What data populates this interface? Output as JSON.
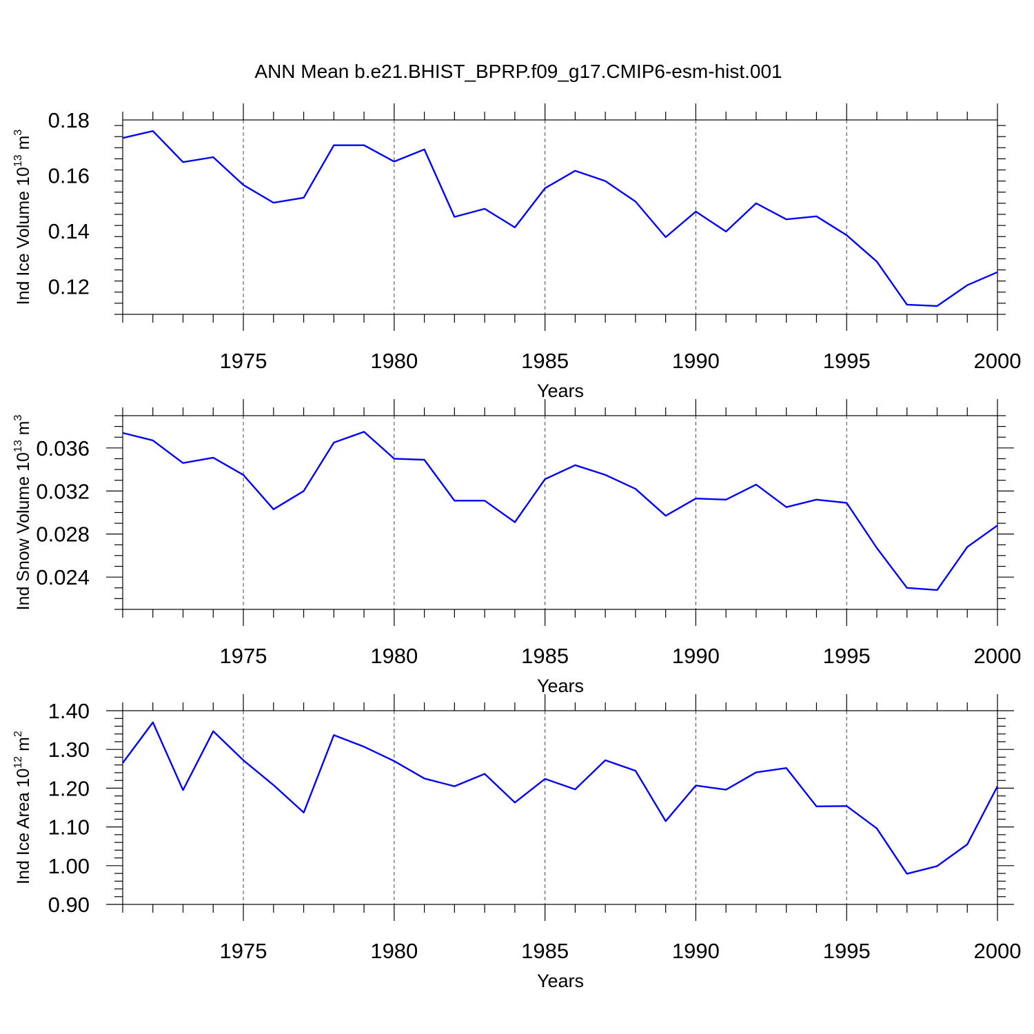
{
  "figure_title": "ANN Mean b.e21.BHIST_BPRP.f09_g17.CMIP6-esm-hist.001",
  "line_color": "#0000ff",
  "chart_data": [
    {
      "type": "line",
      "title": "",
      "xlabel": "Years",
      "ylabel": "Ind Ice Volume 10",
      "ylabel_exp": "13",
      "ylabel_unit": "m",
      "ylabel_unit_exp": "3",
      "xlim": [
        1971,
        2000
      ],
      "ylim": [
        0.11,
        0.18
      ],
      "xticks": [
        1975,
        1980,
        1985,
        1990,
        1995,
        2000
      ],
      "xtick_labels": [
        "1975",
        "1980",
        "1985",
        "1990",
        "1995",
        "2000"
      ],
      "yticks": [
        0.12,
        0.14,
        0.16,
        0.18
      ],
      "ytick_labels": [
        "0.12",
        "0.14",
        "0.16",
        "0.18"
      ],
      "y_minor_step": 0.004,
      "grid": "vertical dashed at major x ticks",
      "x": [
        1971,
        1972,
        1973,
        1974,
        1975,
        1976,
        1977,
        1978,
        1979,
        1980,
        1981,
        1982,
        1983,
        1984,
        1985,
        1986,
        1987,
        1988,
        1989,
        1990,
        1991,
        1992,
        1993,
        1994,
        1995,
        1996,
        1997,
        1998,
        1999,
        2000
      ],
      "values": [
        0.1735,
        0.176,
        0.1648,
        0.1666,
        0.1566,
        0.1502,
        0.152,
        0.1709,
        0.1709,
        0.165,
        0.1694,
        0.1451,
        0.148,
        0.1413,
        0.1554,
        0.1617,
        0.158,
        0.1506,
        0.1378,
        0.147,
        0.1398,
        0.15,
        0.1442,
        0.1453,
        0.1385,
        0.129,
        0.1135,
        0.113,
        0.1205,
        0.1252
      ]
    },
    {
      "type": "line",
      "title": "",
      "xlabel": "Years",
      "ylabel": "Ind Snow Volume 10",
      "ylabel_exp": "13",
      "ylabel_unit": "m",
      "ylabel_unit_exp": "3",
      "xlim": [
        1971,
        2000
      ],
      "ylim": [
        0.021,
        0.039
      ],
      "xticks": [
        1975,
        1980,
        1985,
        1990,
        1995,
        2000
      ],
      "xtick_labels": [
        "1975",
        "1980",
        "1985",
        "1990",
        "1995",
        "2000"
      ],
      "yticks": [
        0.024,
        0.028,
        0.032,
        0.036
      ],
      "ytick_labels": [
        "0.024",
        "0.028",
        "0.032",
        "0.036"
      ],
      "y_minor_step": 0.001,
      "grid": "vertical dashed at major x ticks",
      "x": [
        1971,
        1972,
        1973,
        1974,
        1975,
        1976,
        1977,
        1978,
        1979,
        1980,
        1981,
        1982,
        1983,
        1984,
        1985,
        1986,
        1987,
        1988,
        1989,
        1990,
        1991,
        1992,
        1993,
        1994,
        1995,
        1996,
        1997,
        1998,
        1999,
        2000
      ],
      "values": [
        0.0374,
        0.0367,
        0.0346,
        0.0351,
        0.0335,
        0.0303,
        0.032,
        0.0365,
        0.0375,
        0.035,
        0.0349,
        0.0311,
        0.0311,
        0.0291,
        0.0331,
        0.0344,
        0.0335,
        0.0322,
        0.0297,
        0.0313,
        0.0312,
        0.0326,
        0.0305,
        0.0312,
        0.0309,
        0.0267,
        0.023,
        0.0228,
        0.0268,
        0.0288
      ]
    },
    {
      "type": "line",
      "title": "",
      "xlabel": "Years",
      "ylabel": "Ind Ice Area 10",
      "ylabel_exp": "12",
      "ylabel_unit": "m",
      "ylabel_unit_exp": "2",
      "xlim": [
        1971,
        2000
      ],
      "ylim": [
        0.9,
        1.4
      ],
      "xticks": [
        1975,
        1980,
        1985,
        1990,
        1995,
        2000
      ],
      "xtick_labels": [
        "1975",
        "1980",
        "1985",
        "1990",
        "1995",
        "2000"
      ],
      "yticks": [
        0.9,
        1.0,
        1.1,
        1.2,
        1.3,
        1.4
      ],
      "ytick_labels": [
        "0.90",
        "1.00",
        "1.10",
        "1.20",
        "1.30",
        "1.40"
      ],
      "y_minor_step": 0.02,
      "grid": "vertical dashed at major x ticks",
      "x": [
        1971,
        1972,
        1973,
        1974,
        1975,
        1976,
        1977,
        1978,
        1979,
        1980,
        1981,
        1982,
        1983,
        1984,
        1985,
        1986,
        1987,
        1988,
        1989,
        1990,
        1991,
        1992,
        1993,
        1994,
        1995,
        1996,
        1997,
        1998,
        1999,
        2000
      ],
      "values": [
        1.265,
        1.37,
        1.195,
        1.347,
        1.272,
        1.208,
        1.137,
        1.337,
        1.307,
        1.27,
        1.225,
        1.205,
        1.237,
        1.163,
        1.224,
        1.197,
        1.272,
        1.245,
        1.115,
        1.207,
        1.196,
        1.241,
        1.252,
        1.153,
        1.154,
        1.096,
        0.979,
        0.999,
        1.055,
        1.205
      ]
    }
  ]
}
